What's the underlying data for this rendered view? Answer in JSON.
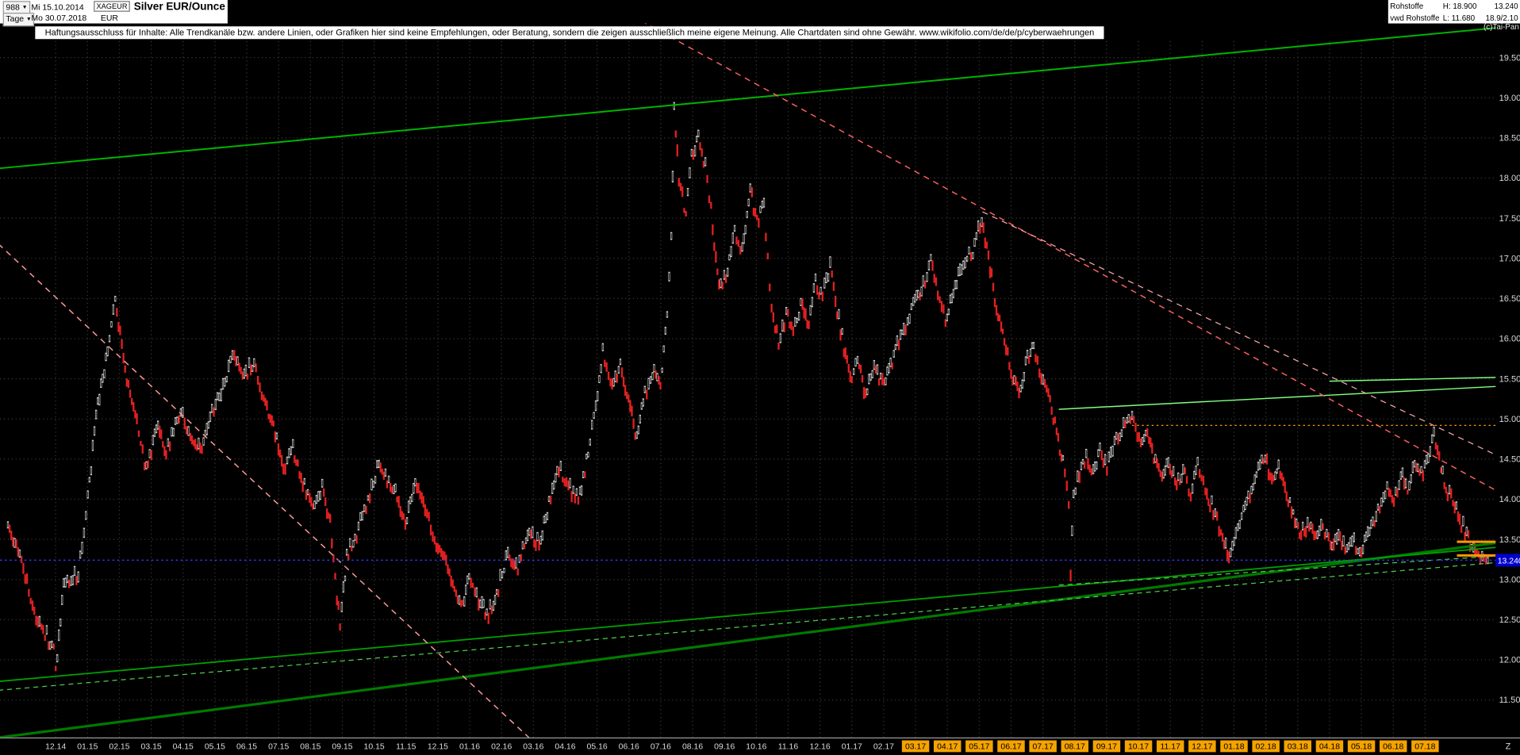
{
  "header": {
    "bars_count": "988",
    "dropdown_glyph": "▼",
    "start_date": "Mi 15.10.2014",
    "symbol": "XAGEUR",
    "title": "Silver EUR/Ounce",
    "timeframe": "Tage",
    "end_date": "Mo 30.07.2018",
    "currency": "EUR",
    "copyright": "(c)Tai-Pan",
    "right": {
      "feed": "Rohstoffe",
      "feed2": "vwd Rohstoffe",
      "high": "H: 18.900",
      "low": "L: 11.680",
      "last": "13.240",
      "quote": "18.9/2.10"
    }
  },
  "disclaimer": "Haftungsausschluss für Inhalte: Alle Trendkanäle bzw. andere Linien, oder Grafiken hier sind keine Empfehlungen, oder Beratung, sondern die zeigen ausschließlich meine eigene Meinung. Alle Chartdaten sind ohne Gewähr.  www.wikifolio.com/de/de/p/cyberwaehrungen",
  "chart_data": {
    "type": "candlestick",
    "title": "Silver EUR/Ounce",
    "symbol": "XAGEUR",
    "currency": "EUR",
    "timeframe": "Tage (daily)",
    "visible_range": {
      "from": "15.10.2014",
      "to": "30.07.2018",
      "bars": 988
    },
    "period_high": 18.9,
    "period_low": 11.68,
    "last_price": 13.24,
    "y_axis_range": [
      11.5,
      19.5
    ],
    "grid": true,
    "t_unit": "month index: 0 = tick 12.14, 1 = 01.15, ... 43 = 07.18",
    "axes": {
      "highlight_color": "#f5a300",
      "end_marker": "Z",
      "y_ticks": [
        {
          "value": 19.5,
          "label": "19.500"
        },
        {
          "value": 19.0,
          "label": "19.000"
        },
        {
          "value": 18.5,
          "label": "18.500"
        },
        {
          "value": 18.0,
          "label": "18.000"
        },
        {
          "value": 17.5,
          "label": "17.500"
        },
        {
          "value": 17.0,
          "label": "17.000"
        },
        {
          "value": 16.5,
          "label": "16.500"
        },
        {
          "value": 16.0,
          "label": "16.000"
        },
        {
          "value": 15.5,
          "label": "15.500"
        },
        {
          "value": 15.0,
          "label": "15.000"
        },
        {
          "value": 14.5,
          "label": "14.500"
        },
        {
          "value": 14.0,
          "label": "14.000"
        },
        {
          "value": 13.5,
          "label": "13.500"
        },
        {
          "value": 13.0,
          "label": "13.000"
        },
        {
          "value": 12.5,
          "label": "12.500"
        },
        {
          "value": 12.0,
          "label": "12.000"
        },
        {
          "value": 11.5,
          "label": "11.500"
        }
      ],
      "x_ticks": [
        {
          "label": "12.14",
          "highlighted": false
        },
        {
          "label": "01.15",
          "highlighted": false
        },
        {
          "label": "02.15",
          "highlighted": false
        },
        {
          "label": "03.15",
          "highlighted": false
        },
        {
          "label": "04.15",
          "highlighted": false
        },
        {
          "label": "05.15",
          "highlighted": false
        },
        {
          "label": "06.15",
          "highlighted": false
        },
        {
          "label": "07.15",
          "highlighted": false
        },
        {
          "label": "08.15",
          "highlighted": false
        },
        {
          "label": "09.15",
          "highlighted": false
        },
        {
          "label": "10.15",
          "highlighted": false
        },
        {
          "label": "11.15",
          "highlighted": false
        },
        {
          "label": "12.15",
          "highlighted": false
        },
        {
          "label": "01.16",
          "highlighted": false
        },
        {
          "label": "02.16",
          "highlighted": false
        },
        {
          "label": "03.16",
          "highlighted": false
        },
        {
          "label": "04.16",
          "highlighted": false
        },
        {
          "label": "05.16",
          "highlighted": false
        },
        {
          "label": "06.16",
          "highlighted": false
        },
        {
          "label": "07.16",
          "highlighted": false
        },
        {
          "label": "08.16",
          "highlighted": false
        },
        {
          "label": "09.16",
          "highlighted": false
        },
        {
          "label": "10.16",
          "highlighted": false
        },
        {
          "label": "11.16",
          "highlighted": false
        },
        {
          "label": "12.16",
          "highlighted": false
        },
        {
          "label": "01.17",
          "highlighted": false
        },
        {
          "label": "02.17",
          "highlighted": false
        },
        {
          "label": "03.17",
          "highlighted": true
        },
        {
          "label": "04.17",
          "highlighted": true
        },
        {
          "label": "05.17",
          "highlighted": true
        },
        {
          "label": "06.17",
          "highlighted": true
        },
        {
          "label": "07.17",
          "highlighted": true
        },
        {
          "label": "08.17",
          "highlighted": true
        },
        {
          "label": "09.17",
          "highlighted": true
        },
        {
          "label": "10.17",
          "highlighted": true
        },
        {
          "label": "11.17",
          "highlighted": true
        },
        {
          "label": "12.17",
          "highlighted": true
        },
        {
          "label": "01.18",
          "highlighted": true
        },
        {
          "label": "02.18",
          "highlighted": true
        },
        {
          "label": "03.18",
          "highlighted": true
        },
        {
          "label": "04.18",
          "highlighted": true
        },
        {
          "label": "05.18",
          "highlighted": true
        },
        {
          "label": "06.18",
          "highlighted": true
        },
        {
          "label": "07.18",
          "highlighted": true
        }
      ]
    },
    "price_path": [
      [
        -1.5,
        13.7
      ],
      [
        -1.13,
        13.3
      ],
      [
        -0.67,
        12.6
      ],
      [
        -0.28,
        12.3
      ],
      [
        -0.06,
        12.1
      ],
      [
        0.0,
        11.85
      ],
      [
        0.25,
        12.9
      ],
      [
        0.71,
        13.1
      ],
      [
        1.01,
        14.0
      ],
      [
        1.32,
        15.2
      ],
      [
        1.63,
        15.8
      ],
      [
        1.87,
        16.5
      ],
      [
        2.18,
        15.6
      ],
      [
        2.55,
        15.0
      ],
      [
        2.85,
        14.35
      ],
      [
        3.16,
        14.9
      ],
      [
        3.47,
        14.6
      ],
      [
        3.93,
        15.1
      ],
      [
        4.23,
        14.8
      ],
      [
        4.54,
        14.6
      ],
      [
        4.85,
        15.0
      ],
      [
        5.31,
        15.45
      ],
      [
        5.61,
        15.85
      ],
      [
        5.92,
        15.55
      ],
      [
        6.23,
        15.7
      ],
      [
        6.53,
        15.3
      ],
      [
        6.84,
        14.9
      ],
      [
        7.15,
        14.4
      ],
      [
        7.45,
        14.6
      ],
      [
        7.76,
        14.2
      ],
      [
        8.13,
        13.9
      ],
      [
        8.37,
        14.15
      ],
      [
        8.62,
        13.7
      ],
      [
        8.83,
        12.75
      ],
      [
        8.93,
        12.45
      ],
      [
        9.14,
        13.3
      ],
      [
        9.45,
        13.55
      ],
      [
        9.75,
        13.9
      ],
      [
        10.15,
        14.45
      ],
      [
        10.46,
        14.2
      ],
      [
        10.67,
        14.1
      ],
      [
        10.98,
        13.7
      ],
      [
        11.29,
        14.2
      ],
      [
        11.6,
        13.9
      ],
      [
        11.9,
        13.5
      ],
      [
        12.21,
        13.3
      ],
      [
        12.52,
        12.9
      ],
      [
        12.73,
        12.65
      ],
      [
        12.98,
        13.0
      ],
      [
        13.28,
        12.75
      ],
      [
        13.59,
        12.55
      ],
      [
        13.9,
        12.9
      ],
      [
        14.2,
        13.35
      ],
      [
        14.51,
        13.15
      ],
      [
        14.82,
        13.6
      ],
      [
        15.18,
        13.45
      ],
      [
        15.49,
        13.95
      ],
      [
        15.8,
        14.4
      ],
      [
        16.1,
        14.15
      ],
      [
        16.41,
        14.0
      ],
      [
        16.72,
        14.55
      ],
      [
        16.96,
        15.2
      ],
      [
        17.18,
        15.85
      ],
      [
        17.42,
        15.4
      ],
      [
        17.73,
        15.65
      ],
      [
        18.04,
        15.1
      ],
      [
        18.25,
        14.75
      ],
      [
        18.5,
        15.3
      ],
      [
        18.74,
        15.6
      ],
      [
        18.99,
        15.45
      ],
      [
        19.2,
        16.3
      ],
      [
        19.33,
        17.3
      ],
      [
        19.42,
        18.85
      ],
      [
        19.57,
        18.0
      ],
      [
        19.79,
        17.55
      ],
      [
        19.97,
        18.25
      ],
      [
        20.18,
        18.5
      ],
      [
        20.4,
        18.15
      ],
      [
        20.58,
        17.6
      ],
      [
        20.83,
        16.6
      ],
      [
        21.1,
        16.85
      ],
      [
        21.32,
        17.3
      ],
      [
        21.56,
        17.1
      ],
      [
        21.81,
        17.85
      ],
      [
        22.02,
        17.45
      ],
      [
        22.24,
        17.65
      ],
      [
        22.48,
        16.4
      ],
      [
        22.7,
        15.95
      ],
      [
        22.94,
        16.3
      ],
      [
        23.16,
        16.1
      ],
      [
        23.4,
        16.45
      ],
      [
        23.65,
        16.2
      ],
      [
        23.86,
        16.7
      ],
      [
        24.08,
        16.55
      ],
      [
        24.32,
        16.9
      ],
      [
        24.54,
        16.35
      ],
      [
        24.75,
        15.9
      ],
      [
        25.0,
        15.5
      ],
      [
        25.18,
        15.75
      ],
      [
        25.43,
        15.3
      ],
      [
        25.7,
        15.6
      ],
      [
        26.01,
        15.45
      ],
      [
        26.32,
        15.8
      ],
      [
        26.63,
        16.1
      ],
      [
        26.93,
        16.45
      ],
      [
        27.24,
        16.65
      ],
      [
        27.48,
        17.0
      ],
      [
        27.7,
        16.6
      ],
      [
        27.94,
        16.25
      ],
      [
        28.19,
        16.6
      ],
      [
        28.5,
        16.9
      ],
      [
        28.8,
        17.1
      ],
      [
        29.08,
        17.5
      ],
      [
        29.29,
        17.0
      ],
      [
        29.54,
        16.4
      ],
      [
        29.79,
        16.0
      ],
      [
        30.0,
        15.6
      ],
      [
        30.25,
        15.25
      ],
      [
        30.46,
        15.7
      ],
      [
        30.71,
        15.9
      ],
      [
        30.95,
        15.55
      ],
      [
        31.17,
        15.3
      ],
      [
        31.38,
        14.9
      ],
      [
        31.63,
        14.45
      ],
      [
        31.81,
        14.0
      ],
      [
        31.87,
        13.0
      ],
      [
        31.96,
        14.05
      ],
      [
        32.15,
        14.3
      ],
      [
        32.36,
        14.5
      ],
      [
        32.58,
        14.3
      ],
      [
        32.79,
        14.6
      ],
      [
        33.01,
        14.4
      ],
      [
        33.25,
        14.7
      ],
      [
        33.53,
        14.9
      ],
      [
        33.8,
        15.05
      ],
      [
        34.02,
        14.7
      ],
      [
        34.23,
        14.85
      ],
      [
        34.48,
        14.55
      ],
      [
        34.69,
        14.3
      ],
      [
        34.94,
        14.5
      ],
      [
        35.15,
        14.2
      ],
      [
        35.4,
        14.35
      ],
      [
        35.64,
        14.1
      ],
      [
        35.86,
        14.4
      ],
      [
        36.1,
        14.15
      ],
      [
        36.35,
        13.85
      ],
      [
        36.59,
        13.6
      ],
      [
        36.84,
        13.3
      ],
      [
        37.06,
        13.6
      ],
      [
        37.3,
        13.9
      ],
      [
        37.55,
        14.1
      ],
      [
        37.76,
        14.35
      ],
      [
        37.98,
        14.5
      ],
      [
        38.19,
        14.25
      ],
      [
        38.4,
        14.45
      ],
      [
        38.65,
        14.05
      ],
      [
        38.86,
        13.8
      ],
      [
        39.11,
        13.55
      ],
      [
        39.36,
        13.7
      ],
      [
        39.57,
        13.5
      ],
      [
        39.79,
        13.65
      ],
      [
        40.03,
        13.45
      ],
      [
        40.28,
        13.55
      ],
      [
        40.49,
        13.4
      ],
      [
        40.71,
        13.5
      ],
      [
        40.95,
        13.35
      ],
      [
        41.2,
        13.55
      ],
      [
        41.41,
        13.7
      ],
      [
        41.63,
        13.95
      ],
      [
        41.81,
        14.15
      ],
      [
        42.02,
        14.0
      ],
      [
        42.24,
        14.3
      ],
      [
        42.45,
        14.15
      ],
      [
        42.67,
        14.4
      ],
      [
        42.88,
        14.3
      ],
      [
        43.1,
        14.55
      ],
      [
        43.28,
        14.8
      ],
      [
        43.5,
        14.4
      ],
      [
        43.71,
        14.1
      ],
      [
        43.93,
        13.9
      ],
      [
        44.14,
        13.7
      ],
      [
        44.36,
        13.5
      ],
      [
        44.57,
        13.35
      ],
      [
        44.79,
        13.28
      ],
      [
        44.97,
        13.24
      ]
    ],
    "last_price_line": {
      "value": 13.24,
      "label": "13.240",
      "line_color": "#3434ff",
      "box_color": "#0000cc"
    },
    "annotations": [
      {
        "name": "upper-trend-channel",
        "color": "#00b400",
        "width": 1.6,
        "dash": null,
        "t1": -1.8,
        "p1": 18.12,
        "t2": 45.5,
        "p2": 19.88
      },
      {
        "name": "lower-trend-main",
        "color": "#007a00",
        "width": 2.6,
        "dash": null,
        "t1": -1.8,
        "p1": 11.03,
        "t2": 45.5,
        "p2": 13.47
      },
      {
        "name": "lower-trend-secondary",
        "color": "#00a000",
        "width": 1.5,
        "dash": null,
        "t1": -1.8,
        "p1": 11.73,
        "t2": 45.5,
        "p2": 13.41
      },
      {
        "name": "support-dashed-full",
        "color": "#4ecc4e",
        "width": 1,
        "dash": "5,4",
        "t1": -1.8,
        "p1": 11.62,
        "t2": 45.5,
        "p2": 13.22
      },
      {
        "name": "resistance-light",
        "color": "#80ff80",
        "width": 1.2,
        "dash": null,
        "t1": 31.5,
        "p1": 15.12,
        "t2": 45.5,
        "p2": 15.41
      },
      {
        "name": "resistance-light-short",
        "color": "#80ff80",
        "width": 1.2,
        "dash": null,
        "t1": 40.0,
        "p1": 15.47,
        "t2": 45.5,
        "p2": 15.52
      },
      {
        "name": "support-dashed-right",
        "color": "#4ecc4e",
        "width": 1,
        "dash": "5,4",
        "t1": 31.5,
        "p1": 12.93,
        "t2": 45.5,
        "p2": 13.3
      },
      {
        "name": "downtrend-steep",
        "color": "#ff9a9a",
        "width": 1.2,
        "dash": "6,5",
        "t1": -1.8,
        "p1": 17.18,
        "t2": 16.3,
        "p2": 10.5
      },
      {
        "name": "downtrend-major",
        "color": "#ff6060",
        "width": 1.2,
        "dash": "6,5",
        "t1": 17.5,
        "p1": 20.15,
        "t2": 45.5,
        "p2": 14.05
      },
      {
        "name": "downtrend-minor",
        "color": "#ffaaaa",
        "width": 1,
        "dash": "6,5",
        "t1": 29.1,
        "p1": 17.58,
        "t2": 45.5,
        "p2": 14.5
      },
      {
        "name": "orange-level-dotted",
        "color": "#ff9900",
        "width": 1,
        "dash": "2,3",
        "t1": 33.8,
        "p1": 14.92,
        "t2": 45.5,
        "p2": 14.92
      },
      {
        "name": "orange-mark-upper",
        "color": "#ff9900",
        "width": 2.4,
        "dash": null,
        "t1": 44.0,
        "p1": 13.47,
        "t2": 45.4,
        "p2": 13.47
      },
      {
        "name": "orange-mark-lower",
        "color": "#ff9900",
        "width": 2.4,
        "dash": null,
        "t1": 44.0,
        "p1": 13.3,
        "t2": 45.4,
        "p2": 13.3
      }
    ]
  }
}
